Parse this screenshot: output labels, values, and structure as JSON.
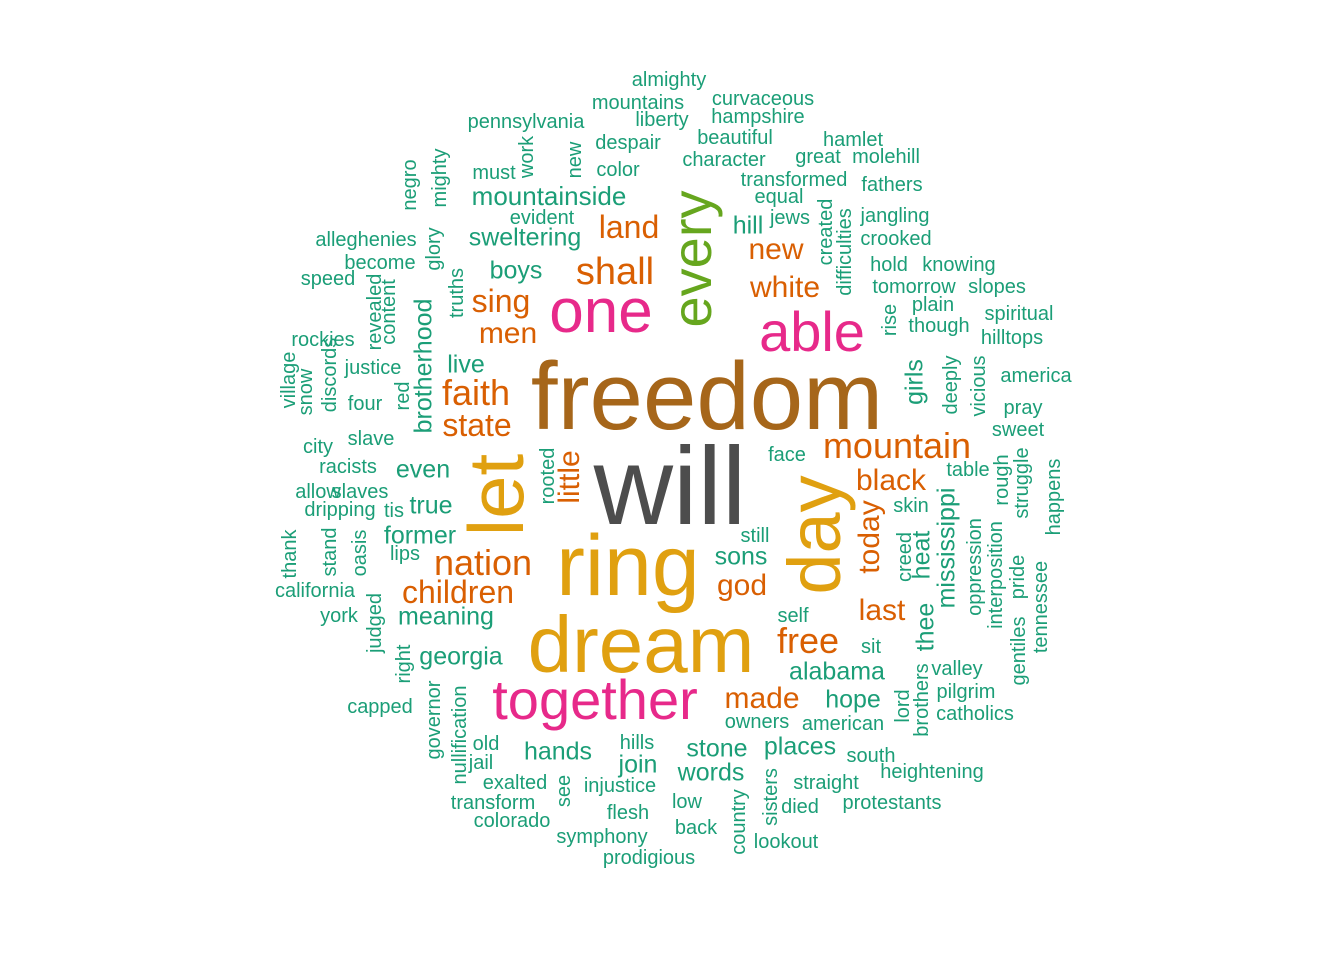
{
  "colors": {
    "gray": "#4d4d4d",
    "brown": "#a6661a",
    "gold": "#e0a010",
    "pink": "#e7298a",
    "green": "#66a61e",
    "orange": "#d95f02",
    "teal": "#1b9e77"
  },
  "words": [
    {
      "text": "will",
      "color": "gray",
      "weight": 10
    },
    {
      "text": "freedom",
      "color": "brown",
      "weight": 9
    },
    {
      "text": "ring",
      "color": "gold",
      "weight": 8
    },
    {
      "text": "dream",
      "color": "gold",
      "weight": 8
    },
    {
      "text": "let",
      "color": "gold",
      "weight": 7
    },
    {
      "text": "day",
      "color": "gold",
      "weight": 7
    },
    {
      "text": "one",
      "color": "pink",
      "weight": 6
    },
    {
      "text": "able",
      "color": "pink",
      "weight": 6
    },
    {
      "text": "together",
      "color": "pink",
      "weight": 6
    },
    {
      "text": "every",
      "color": "green",
      "weight": 6
    },
    {
      "text": "shall",
      "color": "orange",
      "weight": 4
    },
    {
      "text": "mountain",
      "color": "orange",
      "weight": 4
    },
    {
      "text": "faith",
      "color": "orange",
      "weight": 4
    },
    {
      "text": "nation",
      "color": "orange",
      "weight": 4
    },
    {
      "text": "free",
      "color": "orange",
      "weight": 4
    },
    {
      "text": "land",
      "color": "orange",
      "weight": 3
    },
    {
      "text": "sing",
      "color": "orange",
      "weight": 3
    },
    {
      "text": "men",
      "color": "orange",
      "weight": 3
    },
    {
      "text": "new",
      "color": "orange",
      "weight": 3
    },
    {
      "text": "white",
      "color": "orange",
      "weight": 3
    },
    {
      "text": "state",
      "color": "orange",
      "weight": 3
    },
    {
      "text": "black",
      "color": "orange",
      "weight": 3
    },
    {
      "text": "little",
      "color": "orange",
      "weight": 3
    },
    {
      "text": "today",
      "color": "orange",
      "weight": 3
    },
    {
      "text": "children",
      "color": "orange",
      "weight": 3
    },
    {
      "text": "god",
      "color": "orange",
      "weight": 3
    },
    {
      "text": "last",
      "color": "orange",
      "weight": 3
    },
    {
      "text": "made",
      "color": "orange",
      "weight": 3
    },
    {
      "text": "mountainside",
      "color": "teal",
      "weight": 2
    },
    {
      "text": "sweltering",
      "color": "teal",
      "weight": 2
    },
    {
      "text": "boys",
      "color": "teal",
      "weight": 2
    },
    {
      "text": "hill",
      "color": "teal",
      "weight": 2
    },
    {
      "text": "live",
      "color": "teal",
      "weight": 2
    },
    {
      "text": "brotherhood",
      "color": "teal",
      "weight": 2
    },
    {
      "text": "even",
      "color": "teal",
      "weight": 2
    },
    {
      "text": "true",
      "color": "teal",
      "weight": 2
    },
    {
      "text": "former",
      "color": "teal",
      "weight": 2
    },
    {
      "text": "sons",
      "color": "teal",
      "weight": 2
    },
    {
      "text": "girls",
      "color": "teal",
      "weight": 2
    },
    {
      "text": "heat",
      "color": "teal",
      "weight": 2
    },
    {
      "text": "mississippi",
      "color": "teal",
      "weight": 2
    },
    {
      "text": "thee",
      "color": "teal",
      "weight": 2
    },
    {
      "text": "meaning",
      "color": "teal",
      "weight": 2
    },
    {
      "text": "georgia",
      "color": "teal",
      "weight": 2
    },
    {
      "text": "alabama",
      "color": "teal",
      "weight": 2
    },
    {
      "text": "hope",
      "color": "teal",
      "weight": 2
    },
    {
      "text": "hands",
      "color": "teal",
      "weight": 2
    },
    {
      "text": "stone",
      "color": "teal",
      "weight": 2
    },
    {
      "text": "places",
      "color": "teal",
      "weight": 2
    },
    {
      "text": "join",
      "color": "teal",
      "weight": 2
    },
    {
      "text": "words",
      "color": "teal",
      "weight": 2
    },
    {
      "text": "almighty",
      "color": "teal",
      "weight": 1
    },
    {
      "text": "mountains",
      "color": "teal",
      "weight": 1
    },
    {
      "text": "curvaceous",
      "color": "teal",
      "weight": 1
    },
    {
      "text": "pennsylvania",
      "color": "teal",
      "weight": 1
    },
    {
      "text": "liberty",
      "color": "teal",
      "weight": 1
    },
    {
      "text": "hampshire",
      "color": "teal",
      "weight": 1
    },
    {
      "text": "beautiful",
      "color": "teal",
      "weight": 1
    },
    {
      "text": "despair",
      "color": "teal",
      "weight": 1
    },
    {
      "text": "hamlet",
      "color": "teal",
      "weight": 1
    },
    {
      "text": "character",
      "color": "teal",
      "weight": 1
    },
    {
      "text": "great",
      "color": "teal",
      "weight": 1
    },
    {
      "text": "molehill",
      "color": "teal",
      "weight": 1
    },
    {
      "text": "color",
      "color": "teal",
      "weight": 1
    },
    {
      "text": "must",
      "color": "teal",
      "weight": 1
    },
    {
      "text": "work",
      "color": "teal",
      "weight": 1
    },
    {
      "text": "new",
      "color": "teal",
      "weight": 1
    },
    {
      "text": "transformed",
      "color": "teal",
      "weight": 1
    },
    {
      "text": "fathers",
      "color": "teal",
      "weight": 1
    },
    {
      "text": "equal",
      "color": "teal",
      "weight": 1
    },
    {
      "text": "negro",
      "color": "teal",
      "weight": 1
    },
    {
      "text": "mighty",
      "color": "teal",
      "weight": 1
    },
    {
      "text": "evident",
      "color": "teal",
      "weight": 1
    },
    {
      "text": "jews",
      "color": "teal",
      "weight": 1
    },
    {
      "text": "created",
      "color": "teal",
      "weight": 1
    },
    {
      "text": "jangling",
      "color": "teal",
      "weight": 1
    },
    {
      "text": "crooked",
      "color": "teal",
      "weight": 1
    },
    {
      "text": "difficulties",
      "color": "teal",
      "weight": 1
    },
    {
      "text": "alleghenies",
      "color": "teal",
      "weight": 1
    },
    {
      "text": "glory",
      "color": "teal",
      "weight": 1
    },
    {
      "text": "become",
      "color": "teal",
      "weight": 1
    },
    {
      "text": "hold",
      "color": "teal",
      "weight": 1
    },
    {
      "text": "knowing",
      "color": "teal",
      "weight": 1
    },
    {
      "text": "speed",
      "color": "teal",
      "weight": 1
    },
    {
      "text": "truths",
      "color": "teal",
      "weight": 1
    },
    {
      "text": "tomorrow",
      "color": "teal",
      "weight": 1
    },
    {
      "text": "slopes",
      "color": "teal",
      "weight": 1
    },
    {
      "text": "revealed",
      "color": "teal",
      "weight": 1
    },
    {
      "text": "plain",
      "color": "teal",
      "weight": 1
    },
    {
      "text": "content",
      "color": "teal",
      "weight": 1
    },
    {
      "text": "rise",
      "color": "teal",
      "weight": 1
    },
    {
      "text": "spiritual",
      "color": "teal",
      "weight": 1
    },
    {
      "text": "though",
      "color": "teal",
      "weight": 1
    },
    {
      "text": "rockies",
      "color": "teal",
      "weight": 1
    },
    {
      "text": "hilltops",
      "color": "teal",
      "weight": 1
    },
    {
      "text": "village",
      "color": "teal",
      "weight": 1
    },
    {
      "text": "justice",
      "color": "teal",
      "weight": 1
    },
    {
      "text": "america",
      "color": "teal",
      "weight": 1
    },
    {
      "text": "snow",
      "color": "teal",
      "weight": 1
    },
    {
      "text": "discords",
      "color": "teal",
      "weight": 1
    },
    {
      "text": "red",
      "color": "teal",
      "weight": 1
    },
    {
      "text": "deeply",
      "color": "teal",
      "weight": 1
    },
    {
      "text": "vicious",
      "color": "teal",
      "weight": 1
    },
    {
      "text": "four",
      "color": "teal",
      "weight": 1
    },
    {
      "text": "pray",
      "color": "teal",
      "weight": 1
    },
    {
      "text": "sweet",
      "color": "teal",
      "weight": 1
    },
    {
      "text": "city",
      "color": "teal",
      "weight": 1
    },
    {
      "text": "slave",
      "color": "teal",
      "weight": 1
    },
    {
      "text": "face",
      "color": "teal",
      "weight": 1
    },
    {
      "text": "racists",
      "color": "teal",
      "weight": 1
    },
    {
      "text": "rooted",
      "color": "teal",
      "weight": 1
    },
    {
      "text": "table",
      "color": "teal",
      "weight": 1
    },
    {
      "text": "rough",
      "color": "teal",
      "weight": 1
    },
    {
      "text": "struggle",
      "color": "teal",
      "weight": 1
    },
    {
      "text": "allow",
      "color": "teal",
      "weight": 1
    },
    {
      "text": "slaves",
      "color": "teal",
      "weight": 1
    },
    {
      "text": "happens",
      "color": "teal",
      "weight": 1
    },
    {
      "text": "dripping",
      "color": "teal",
      "weight": 1
    },
    {
      "text": "tis",
      "color": "teal",
      "weight": 1
    },
    {
      "text": "skin",
      "color": "teal",
      "weight": 1
    },
    {
      "text": "still",
      "color": "teal",
      "weight": 1
    },
    {
      "text": "thank",
      "color": "teal",
      "weight": 1
    },
    {
      "text": "stand",
      "color": "teal",
      "weight": 1
    },
    {
      "text": "oasis",
      "color": "teal",
      "weight": 1
    },
    {
      "text": "lips",
      "color": "teal",
      "weight": 1
    },
    {
      "text": "creed",
      "color": "teal",
      "weight": 1
    },
    {
      "text": "oppression",
      "color": "teal",
      "weight": 1
    },
    {
      "text": "interposition",
      "color": "teal",
      "weight": 1
    },
    {
      "text": "pride",
      "color": "teal",
      "weight": 1
    },
    {
      "text": "tennessee",
      "color": "teal",
      "weight": 1
    },
    {
      "text": "california",
      "color": "teal",
      "weight": 1
    },
    {
      "text": "york",
      "color": "teal",
      "weight": 1
    },
    {
      "text": "judged",
      "color": "teal",
      "weight": 1
    },
    {
      "text": "self",
      "color": "teal",
      "weight": 1
    },
    {
      "text": "gentiles",
      "color": "teal",
      "weight": 1
    },
    {
      "text": "right",
      "color": "teal",
      "weight": 1
    },
    {
      "text": "sit",
      "color": "teal",
      "weight": 1
    },
    {
      "text": "valley",
      "color": "teal",
      "weight": 1
    },
    {
      "text": "governor",
      "color": "teal",
      "weight": 1
    },
    {
      "text": "nullification",
      "color": "teal",
      "weight": 1
    },
    {
      "text": "lord",
      "color": "teal",
      "weight": 1
    },
    {
      "text": "brothers",
      "color": "teal",
      "weight": 1
    },
    {
      "text": "pilgrim",
      "color": "teal",
      "weight": 1
    },
    {
      "text": "capped",
      "color": "teal",
      "weight": 1
    },
    {
      "text": "owners",
      "color": "teal",
      "weight": 1
    },
    {
      "text": "american",
      "color": "teal",
      "weight": 1
    },
    {
      "text": "catholics",
      "color": "teal",
      "weight": 1
    },
    {
      "text": "old",
      "color": "teal",
      "weight": 1
    },
    {
      "text": "hills",
      "color": "teal",
      "weight": 1
    },
    {
      "text": "jail",
      "color": "teal",
      "weight": 1
    },
    {
      "text": "south",
      "color": "teal",
      "weight": 1
    },
    {
      "text": "exalted",
      "color": "teal",
      "weight": 1
    },
    {
      "text": "see",
      "color": "teal",
      "weight": 1
    },
    {
      "text": "injustice",
      "color": "teal",
      "weight": 1
    },
    {
      "text": "heightening",
      "color": "teal",
      "weight": 1
    },
    {
      "text": "straight",
      "color": "teal",
      "weight": 1
    },
    {
      "text": "transform",
      "color": "teal",
      "weight": 1
    },
    {
      "text": "low",
      "color": "teal",
      "weight": 1
    },
    {
      "text": "sisters",
      "color": "teal",
      "weight": 1
    },
    {
      "text": "died",
      "color": "teal",
      "weight": 1
    },
    {
      "text": "protestants",
      "color": "teal",
      "weight": 1
    },
    {
      "text": "flesh",
      "color": "teal",
      "weight": 1
    },
    {
      "text": "colorado",
      "color": "teal",
      "weight": 1
    },
    {
      "text": "back",
      "color": "teal",
      "weight": 1
    },
    {
      "text": "country",
      "color": "teal",
      "weight": 1
    },
    {
      "text": "symphony",
      "color": "teal",
      "weight": 1
    },
    {
      "text": "lookout",
      "color": "teal",
      "weight": 1
    },
    {
      "text": "prodigious",
      "color": "teal",
      "weight": 1
    }
  ]
}
